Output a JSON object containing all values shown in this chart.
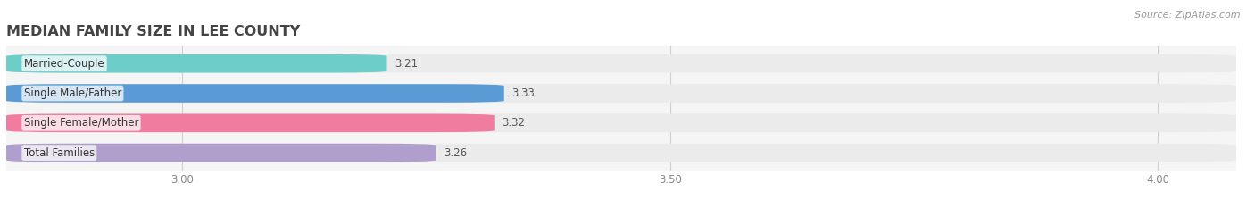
{
  "title": "MEDIAN FAMILY SIZE IN LEE COUNTY",
  "source": "Source: ZipAtlas.com",
  "categories": [
    "Married-Couple",
    "Single Male/Father",
    "Single Female/Mother",
    "Total Families"
  ],
  "values": [
    3.21,
    3.33,
    3.32,
    3.26
  ],
  "bar_colors": [
    "#6dcdc8",
    "#5b9bd5",
    "#f07ca0",
    "#b09fcc"
  ],
  "background_bar_color": "#ebebeb",
  "xlim": [
    2.82,
    4.08
  ],
  "xticks": [
    3.0,
    3.5,
    4.0
  ],
  "bar_height": 0.62,
  "title_fontsize": 11.5,
  "label_fontsize": 8.5,
  "value_fontsize": 8.5,
  "source_fontsize": 8,
  "bg_color": "#ffffff",
  "plot_bg_color": "#f5f5f5"
}
